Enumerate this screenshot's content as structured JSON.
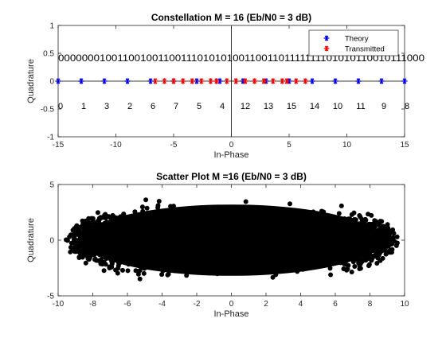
{
  "chart_data": [
    {
      "type": "scatter",
      "title": "Constellation M = 16 (Eb/N0 = 3 dB)",
      "xlabel": "In-Phase",
      "ylabel": "Quadrature",
      "xlim": [
        -15,
        15
      ],
      "ylim": [
        -1,
        1
      ],
      "xticks": [
        "-15",
        "-10",
        "-5",
        "0",
        "5",
        "10",
        "15"
      ],
      "yticks": [
        "-1",
        "-0.5",
        "0",
        "0.5",
        "1"
      ],
      "xtick_values": [
        -15,
        -10,
        -5,
        0,
        5,
        10,
        15
      ],
      "ytick_values": [
        -1,
        -0.5,
        0,
        0.5,
        1
      ],
      "legend_position": "top-right",
      "series": [
        {
          "name": "Theory",
          "marker": "*",
          "color": "#0000ff",
          "x": [
            -15,
            -13,
            -11,
            -9,
            -7,
            -5,
            -3,
            -1,
            1,
            3,
            5,
            7,
            9,
            11,
            13,
            15
          ],
          "y": [
            0,
            0,
            0,
            0,
            0,
            0,
            0,
            0,
            0,
            0,
            0,
            0,
            0,
            0,
            0,
            0
          ]
        },
        {
          "name": "Transmitted",
          "marker": "*",
          "color": "#ff0000",
          "x": [
            -6.6,
            -5.8,
            -5.0,
            -4.2,
            -3.4,
            -2.6,
            -1.8,
            -1.3,
            -0.4,
            0.4,
            1.2,
            2.0,
            2.8,
            3.6,
            4.4,
            4.8,
            5.6,
            6.4
          ],
          "y": [
            0,
            0,
            0,
            0,
            0,
            0,
            0,
            0,
            0,
            0,
            0,
            0,
            0,
            0,
            0,
            0,
            0,
            0
          ]
        }
      ],
      "bit_labels": "0000000100110010011001110101010011001101111111101010110010111000",
      "symbol_labels": [
        {
          "text": "0",
          "x": -15
        },
        {
          "text": "1",
          "x": -13
        },
        {
          "text": "3",
          "x": -11
        },
        {
          "text": "2",
          "x": -9
        },
        {
          "text": "6",
          "x": -7
        },
        {
          "text": "7",
          "x": -5
        },
        {
          "text": "5",
          "x": -3
        },
        {
          "text": "4",
          "x": -1
        },
        {
          "text": "12",
          "x": 1
        },
        {
          "text": "13",
          "x": 3
        },
        {
          "text": "15",
          "x": 5
        },
        {
          "text": "14",
          "x": 7
        },
        {
          "text": "10",
          "x": 9
        },
        {
          "text": "11",
          "x": 11
        },
        {
          "text": "9",
          "x": 13
        },
        {
          "text": "8",
          "x": 15
        }
      ]
    },
    {
      "type": "scatter",
      "title": "Scatter Plot M =16 (Eb/N0 = 3 dB)",
      "xlabel": "In-Phase",
      "ylabel": "Quadrature",
      "xlim": [
        -10,
        10
      ],
      "ylim": [
        -5,
        5
      ],
      "xticks": [
        "-10",
        "-8",
        "-6",
        "-4",
        "-2",
        "0",
        "2",
        "4",
        "6",
        "8",
        "10"
      ],
      "yticks": [
        "-5",
        "0",
        "5"
      ],
      "xtick_values": [
        -10,
        -8,
        -6,
        -4,
        -2,
        0,
        2,
        4,
        6,
        8,
        10
      ],
      "ytick_values": [
        -5,
        0,
        5
      ],
      "color": "#000000",
      "x_extent": [
        -9.6,
        9.6
      ],
      "y_extent": [
        -4.3,
        4.3
      ]
    }
  ]
}
